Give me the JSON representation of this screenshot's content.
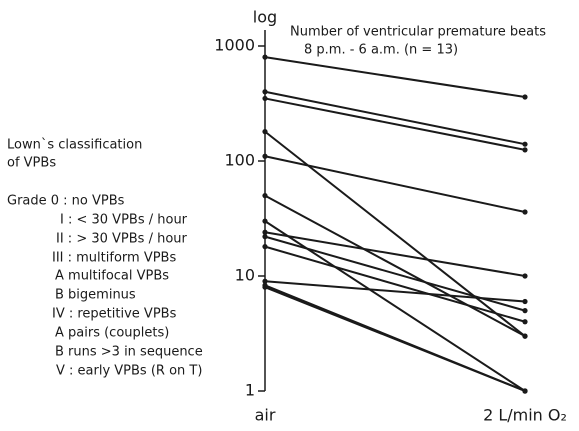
{
  "chart_data": {
    "type": "slope",
    "y_label": "log",
    "title": [
      "Number of ventricular premature beats",
      "8 p.m. - 6 a.m. (n = 13)"
    ],
    "categories": [
      "air",
      "2 L/min O₂"
    ],
    "log_scale": true,
    "ylim": [
      1,
      1000
    ],
    "yticks": [
      1,
      10,
      100,
      1000
    ],
    "color": "#1a1a1a",
    "series": [
      {
        "values": [
          800,
          360
        ]
      },
      {
        "values": [
          400,
          140
        ]
      },
      {
        "values": [
          350,
          125
        ]
      },
      {
        "values": [
          180,
          3
        ]
      },
      {
        "values": [
          110,
          36
        ]
      },
      {
        "values": [
          50,
          3
        ]
      },
      {
        "values": [
          30,
          1
        ]
      },
      {
        "values": [
          24,
          10
        ]
      },
      {
        "values": [
          22,
          5
        ]
      },
      {
        "values": [
          18,
          4
        ]
      },
      {
        "values": [
          9,
          6
        ]
      },
      {
        "values": [
          8.3,
          1
        ]
      },
      {
        "values": [
          8,
          1
        ]
      }
    ],
    "notes": [
      "Lown`s classification",
      "of VPBs",
      "Grade 0 : no VPBs",
      "I : < 30 VPBs / hour",
      "II : > 30 VPBs / hour",
      "III : multiform VPBs",
      "A  multifocal VPBs",
      "B  bigeminus",
      "IV : repetitive VPBs",
      "A  pairs (couplets)",
      "B  runs >3 in sequence",
      "V : early VPBs (R on T)"
    ]
  }
}
